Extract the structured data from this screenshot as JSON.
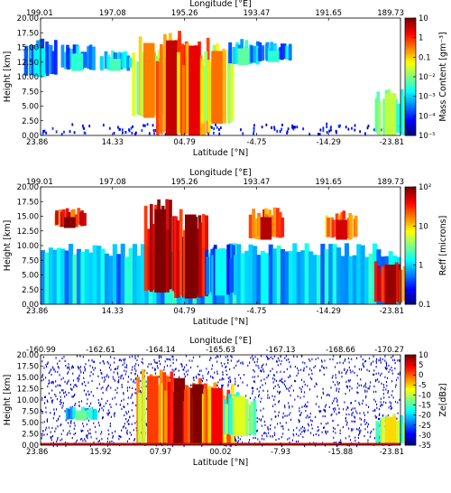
{
  "chart_data": [
    {
      "type": "heatmap",
      "top_axis": {
        "label": "Longitude [°E]",
        "ticks": [
          "199.01",
          "197.08",
          "195.26",
          "193.47",
          "191.65",
          "189.73"
        ]
      },
      "bottom_axis": {
        "label": "Latitude [°N]",
        "ticks": [
          "23.86",
          "14.33",
          "04.79",
          "-4.75",
          "-14.29",
          "-23.81"
        ],
        "range": [
          23.86,
          -23.81
        ]
      },
      "y_axis": {
        "label": "Height [km]",
        "ticks": [
          "0.00",
          "2.50",
          "5.00",
          "7.50",
          "10.00",
          "12.50",
          "15.00",
          "17.50",
          "20.00"
        ],
        "range": [
          0,
          20
        ]
      },
      "colorbar": {
        "label": "Mass Content [gm⁻³]",
        "scale": "log",
        "ticks": [
          "10",
          "1",
          "0.1",
          "10⁻²",
          "10⁻³",
          "10⁻⁴",
          "10⁻⁵"
        ],
        "range": [
          1e-05,
          10
        ]
      },
      "features": [
        {
          "lat": 24.0,
          "h_bottom": 10.0,
          "h_top": 16.5,
          "value": 0.0002
        },
        {
          "lat": 19.0,
          "h_bottom": 11.0,
          "h_top": 15.5,
          "value": 0.0004
        },
        {
          "lat": 14.0,
          "h_bottom": 11.0,
          "h_top": 14.5,
          "value": 0.0006
        },
        {
          "lat": 9.5,
          "h_bottom": 3.0,
          "h_top": 17.5,
          "value": 0.04
        },
        {
          "lat": 6.5,
          "h_bottom": 0.0,
          "h_top": 18.0,
          "value": 0.5
        },
        {
          "lat": 3.5,
          "h_bottom": 0.0,
          "h_top": 17.0,
          "value": 0.3
        },
        {
          "lat": 0.5,
          "h_bottom": 2.0,
          "h_top": 16.0,
          "value": 0.05
        },
        {
          "lat": -3.0,
          "h_bottom": 12.0,
          "h_top": 16.5,
          "value": 0.0008
        },
        {
          "lat": -7.0,
          "h_bottom": 12.5,
          "h_top": 16.0,
          "value": 0.0004
        },
        {
          "lat": -22.5,
          "h_bottom": 0.0,
          "h_top": 8.0,
          "value": 0.003
        }
      ]
    },
    {
      "type": "heatmap",
      "top_axis": {
        "label": "Longitude [°E]",
        "ticks": [
          "199.01",
          "197.08",
          "195.26",
          "193.47",
          "191.65",
          "189.73"
        ]
      },
      "bottom_axis": {
        "label": "Latitude [°N]",
        "ticks": [
          "23.86",
          "14.33",
          "04.79",
          "-4.75",
          "-14.29",
          "-23.81"
        ],
        "range": [
          23.86,
          -23.81
        ]
      },
      "y_axis": {
        "label": "Height [km]",
        "ticks": [
          "0.00",
          "2.50",
          "5.00",
          "7.50",
          "10.00",
          "12.50",
          "15.00",
          "17.50",
          "20.00"
        ],
        "range": [
          0,
          20
        ]
      },
      "colorbar": {
        "label": "Reff [microns]",
        "scale": "log",
        "ticks": [
          "10²",
          "10",
          "1",
          "0.1"
        ],
        "range": [
          0.1,
          100
        ]
      },
      "features": [
        {
          "lat": 20.0,
          "h_bottom": 13.0,
          "h_top": 16.5,
          "value": 40
        },
        {
          "lat": 8.0,
          "h_bottom": 2.0,
          "h_top": 18.0,
          "value": 70
        },
        {
          "lat": 4.0,
          "h_bottom": 1.0,
          "h_top": 17.0,
          "value": 60
        },
        {
          "lat": -6.0,
          "h_bottom": 11.0,
          "h_top": 16.5,
          "value": 25
        },
        {
          "lat": -16.0,
          "h_bottom": 11.0,
          "h_top": 16.0,
          "value": 20
        },
        {
          "lat": -22.5,
          "h_bottom": 0.0,
          "h_top": 7.5,
          "value": 30
        },
        {
          "lat": 0.0,
          "h_bottom": 1.5,
          "h_top": 10.5,
          "value": 0.5
        }
      ]
    },
    {
      "type": "heatmap",
      "top_axis": {
        "label": "Longitude [°E]",
        "ticks": [
          "-160.99",
          "-162.61",
          "-164.14",
          "-165.63",
          "-167.13",
          "-168.66",
          "-170.27"
        ]
      },
      "bottom_axis": {
        "label": "Latitude [°N]",
        "ticks": [
          "23.86",
          "15.92",
          "07.97",
          "00.02",
          "-7.93",
          "-15.88",
          "-23.81"
        ],
        "range": [
          23.86,
          -23.81
        ]
      },
      "y_axis": {
        "label": "Height [km]",
        "ticks": [
          "0.00",
          "2.50",
          "5.00",
          "7.50",
          "10.00",
          "12.50",
          "15.00",
          "17.50",
          "20.00"
        ],
        "range": [
          0,
          20
        ]
      },
      "colorbar": {
        "label": "Ze[dBz]",
        "scale": "linear",
        "ticks": [
          "10",
          "5",
          "0",
          "-5",
          "-10",
          "-15",
          "-20",
          "-25",
          "-30",
          "-35"
        ],
        "range": [
          -35,
          10
        ]
      },
      "features": [
        {
          "lat": 9.0,
          "h_bottom": 0.0,
          "h_top": 17.0,
          "value": -5
        },
        {
          "lat": 5.5,
          "h_bottom": 0.0,
          "h_top": 16.5,
          "value": 3
        },
        {
          "lat": 3.0,
          "h_bottom": 0.0,
          "h_top": 15.0,
          "value": 5
        },
        {
          "lat": 0.5,
          "h_bottom": 0.0,
          "h_top": 14.0,
          "value": -2
        },
        {
          "lat": -2.5,
          "h_bottom": 2.0,
          "h_top": 12.0,
          "value": -15
        },
        {
          "lat": 18.5,
          "h_bottom": 5.5,
          "h_top": 8.5,
          "value": -20
        },
        {
          "lat": -22.5,
          "h_bottom": 0.0,
          "h_top": 7.0,
          "value": -12
        }
      ]
    }
  ]
}
